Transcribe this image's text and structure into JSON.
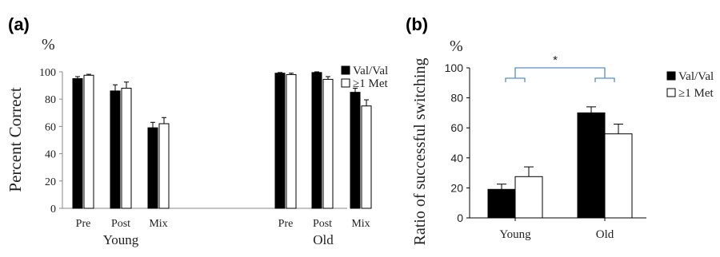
{
  "chart_data": [
    {
      "panel_label": "(a)",
      "type": "bar",
      "unit": "%",
      "ylabel": "Percent Correct",
      "ylim": [
        0,
        100
      ],
      "yticks": [
        "0",
        "20",
        "40",
        "60",
        "80",
        "100"
      ],
      "groups": [
        {
          "name": "Young",
          "categories": [
            "Pre",
            "Post",
            "Mix"
          ]
        },
        {
          "name": "Old",
          "categories": [
            "Pre",
            "Post",
            "Mix"
          ]
        }
      ],
      "series": [
        {
          "name": "Val/Val",
          "color": "#000000",
          "values": [
            95,
            86,
            59,
            99,
            99.5,
            85
          ],
          "errors": [
            1.5,
            4.5,
            4,
            0.5,
            0.5,
            3
          ]
        },
        {
          "name": "≥1 Met",
          "color": "#ffffff",
          "values": [
            97.5,
            88,
            62,
            98,
            94.5,
            75
          ],
          "errors": [
            0.7,
            4.5,
            4.5,
            1,
            2,
            4.5
          ]
        }
      ],
      "legend_position": "top-right"
    },
    {
      "panel_label": "(b)",
      "type": "bar",
      "unit": "%",
      "ylabel": "Ratio of successful switching",
      "ylim": [
        0,
        100
      ],
      "yticks": [
        "0",
        "20",
        "40",
        "60",
        "80",
        "100"
      ],
      "categories": [
        "Young",
        "Old"
      ],
      "series": [
        {
          "name": "Val/Val",
          "color": "#000000",
          "values": [
            19,
            70
          ],
          "errors": [
            3.5,
            4
          ]
        },
        {
          "name": "≥1 Met",
          "color": "#ffffff",
          "values": [
            27.5,
            56
          ],
          "errors": [
            6.5,
            6.5
          ]
        }
      ],
      "significance": {
        "label": "*",
        "between": [
          "Young",
          "Old"
        ]
      },
      "legend_position": "right"
    }
  ]
}
